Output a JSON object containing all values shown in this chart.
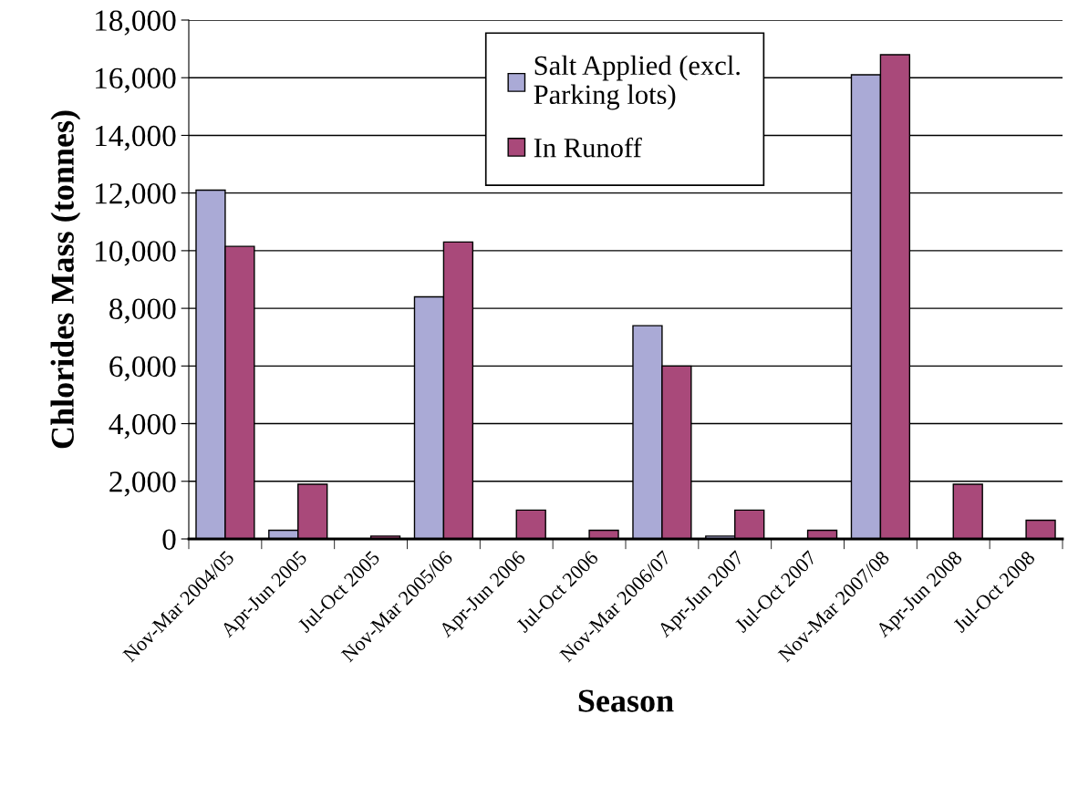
{
  "chart_data": {
    "type": "bar",
    "xlabel": "Season",
    "ylabel": "Chlorides Mass (tonnes)",
    "categories": [
      "Nov-Mar 2004/05",
      "Apr-Jun 2005",
      "Jul-Oct 2005",
      "Nov-Mar 2005/06",
      "Apr-Jun 2006",
      "Jul-Oct 2006",
      "Nov-Mar 2006/07",
      "Apr-Jun 2007",
      "Jul-Oct 2007",
      "Nov-Mar 2007/08",
      "Apr-Jun 2008",
      "Jul-Oct 2008"
    ],
    "series": [
      {
        "name": "Salt Applied (excl. Parking lots)",
        "color": "#aaaad6",
        "values": [
          12100,
          300,
          null,
          8400,
          null,
          null,
          7400,
          100,
          null,
          16100,
          null,
          null
        ]
      },
      {
        "name": "In Runoff",
        "color": "#a9497a",
        "values": [
          10150,
          1900,
          100,
          10300,
          1000,
          300,
          6000,
          1000,
          300,
          16800,
          1900,
          650
        ]
      }
    ],
    "ylim": [
      0,
      18000
    ],
    "yticks": [
      {
        "value": 0,
        "label": "0"
      },
      {
        "value": 2000,
        "label": "2,000"
      },
      {
        "value": 4000,
        "label": "4,000"
      },
      {
        "value": 6000,
        "label": "6,000"
      },
      {
        "value": 8000,
        "label": "8,000"
      },
      {
        "value": 10000,
        "label": "10,000"
      },
      {
        "value": 12000,
        "label": "12,000"
      },
      {
        "value": 14000,
        "label": "14,000"
      },
      {
        "value": 16000,
        "label": "16,000"
      },
      {
        "value": 18000,
        "label": "18,000"
      }
    ],
    "grid": "y",
    "legend": "top"
  }
}
